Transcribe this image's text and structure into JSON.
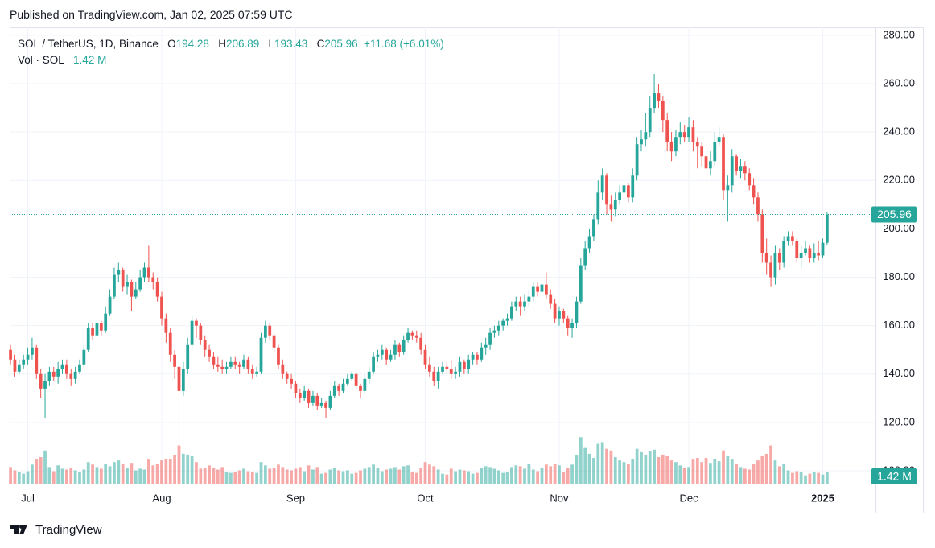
{
  "header": {
    "published": "Published on TradingView.com, Jan 02, 2025 07:59 UTC"
  },
  "footer": {
    "brand": "TradingView"
  },
  "chart_data": {
    "type": "candlestick",
    "symbol": "SOL / TetherUS, 1D, Binance",
    "ohlc_labels": [
      "O",
      "H",
      "L",
      "C"
    ],
    "change": "+11.68 (+6.01%)",
    "volume_title": "Vol · SOL",
    "volume_value_label": "1.42 M",
    "up_color": "#26a69a",
    "down_color": "#ef5350",
    "grid": true,
    "xlim": [
      -0.2,
      200.2
    ],
    "xticks": [
      {
        "value": 4,
        "label": "Jul"
      },
      {
        "value": 35,
        "label": "Aug"
      },
      {
        "value": 66,
        "label": "Sep"
      },
      {
        "value": 96,
        "label": "Oct"
      },
      {
        "value": 127,
        "label": "Nov"
      },
      {
        "value": 157,
        "label": "Dec"
      },
      {
        "value": 188,
        "label": "2025"
      }
    ],
    "ylim": [
      94.7,
      283.3
    ],
    "yticks": [
      {
        "value": 100,
        "label": "100.00"
      },
      {
        "value": 120,
        "label": "120.00"
      },
      {
        "value": 140,
        "label": "140.00"
      },
      {
        "value": 160,
        "label": "160.00"
      },
      {
        "value": 180,
        "label": "180.00"
      },
      {
        "value": 200,
        "label": "200.00"
      },
      {
        "value": 220,
        "label": "220.00"
      },
      {
        "value": 240,
        "label": "240.00"
      },
      {
        "value": 260,
        "label": "260.00"
      },
      {
        "value": 280,
        "label": "280.00"
      }
    ],
    "vol_ylim": [
      0,
      55
    ],
    "candles": [
      [
        150,
        152,
        144,
        146,
        2.0
      ],
      [
        146,
        148,
        139,
        141,
        1.6
      ],
      [
        141,
        146,
        140,
        144,
        1.4
      ],
      [
        144,
        148,
        142,
        146,
        1.2
      ],
      [
        146,
        151,
        144,
        148,
        1.5
      ],
      [
        148,
        155,
        146,
        151,
        2.3
      ],
      [
        151,
        152,
        138,
        140,
        2.9
      ],
      [
        140,
        142,
        130,
        134,
        3.2
      ],
      [
        134,
        140,
        122,
        137,
        4.0
      ],
      [
        137,
        143,
        135,
        141,
        2.0
      ],
      [
        141,
        143,
        137,
        139,
        1.5
      ],
      [
        139,
        145,
        136,
        142,
        2.2
      ],
      [
        142,
        146,
        140,
        144,
        1.8
      ],
      [
        144,
        146,
        138,
        140,
        1.7
      ],
      [
        140,
        142,
        135,
        138,
        1.9
      ],
      [
        138,
        143,
        136,
        141,
        1.6
      ],
      [
        141,
        146,
        140,
        144,
        1.4
      ],
      [
        144,
        152,
        143,
        150,
        1.7
      ],
      [
        150,
        161,
        149,
        159,
        2.6
      ],
      [
        159,
        161,
        154,
        156,
        2.3
      ],
      [
        156,
        163,
        155,
        161,
        2.0
      ],
      [
        161,
        162,
        156,
        158,
        1.8
      ],
      [
        158,
        168,
        157,
        165,
        2.4
      ],
      [
        165,
        175,
        164,
        172,
        2.1
      ],
      [
        172,
        184,
        171,
        181,
        2.6
      ],
      [
        181,
        186,
        178,
        183,
        2.8
      ],
      [
        183,
        184,
        174,
        176,
        2.4
      ],
      [
        176,
        181,
        173,
        178,
        1.9
      ],
      [
        178,
        179,
        166,
        172,
        2.5
      ],
      [
        172,
        178,
        171,
        175,
        1.6
      ],
      [
        175,
        183,
        174,
        180,
        1.8
      ],
      [
        180,
        186,
        178,
        184,
        1.7
      ],
      [
        184,
        193,
        178,
        180,
        2.9
      ],
      [
        180,
        182,
        175,
        178,
        2.2
      ],
      [
        178,
        180,
        170,
        172,
        2.4
      ],
      [
        172,
        174,
        160,
        163,
        2.8
      ],
      [
        163,
        165,
        153,
        157,
        3.0
      ],
      [
        157,
        159,
        145,
        148,
        3.0
      ],
      [
        148,
        150,
        138,
        143,
        3.4
      ],
      [
        143,
        145,
        110,
        133,
        4.6
      ],
      [
        133,
        145,
        131,
        142,
        3.6
      ],
      [
        142,
        155,
        140,
        152,
        3.5
      ],
      [
        152,
        164,
        150,
        162,
        3.3
      ],
      [
        162,
        163,
        155,
        160,
        2.6
      ],
      [
        160,
        161,
        152,
        154,
        1.8
      ],
      [
        154,
        156,
        147,
        150,
        1.9
      ],
      [
        150,
        152,
        145,
        147,
        2.2
      ],
      [
        147,
        149,
        142,
        144,
        1.9
      ],
      [
        144,
        147,
        141,
        143,
        1.7
      ],
      [
        143,
        146,
        140,
        142,
        2.0
      ],
      [
        142,
        145,
        140,
        143,
        1.4
      ],
      [
        143,
        147,
        142,
        145,
        1.3
      ],
      [
        145,
        147,
        142,
        144,
        1.4
      ],
      [
        144,
        145,
        140,
        143,
        1.6
      ],
      [
        143,
        148,
        142,
        146,
        1.8
      ],
      [
        146,
        147,
        140,
        142,
        1.5
      ],
      [
        142,
        144,
        138,
        140,
        1.4
      ],
      [
        140,
        143,
        139,
        141,
        1.3
      ],
      [
        141,
        157,
        140,
        155,
        2.6
      ],
      [
        155,
        162,
        153,
        160,
        2.2
      ],
      [
        160,
        161,
        154,
        156,
        1.8
      ],
      [
        156,
        157,
        149,
        151,
        1.9
      ],
      [
        151,
        152,
        142,
        144,
        2.3
      ],
      [
        144,
        146,
        138,
        140,
        2.0
      ],
      [
        140,
        141,
        136,
        138,
        1.7
      ],
      [
        138,
        140,
        134,
        136,
        1.6
      ],
      [
        136,
        137,
        130,
        132,
        1.8
      ],
      [
        132,
        134,
        128,
        130,
        2.0
      ],
      [
        130,
        135,
        129,
        133,
        1.5
      ],
      [
        133,
        134,
        126,
        128,
        2.2
      ],
      [
        128,
        133,
        127,
        131,
        1.7
      ],
      [
        131,
        132,
        125,
        127,
        2.0
      ],
      [
        127,
        130,
        126,
        128,
        1.2
      ],
      [
        128,
        129,
        122,
        126,
        1.3
      ],
      [
        126,
        133,
        125,
        131,
        1.7
      ],
      [
        131,
        137,
        130,
        135,
        1.9
      ],
      [
        135,
        136,
        131,
        133,
        1.6
      ],
      [
        133,
        138,
        132,
        136,
        1.5
      ],
      [
        136,
        140,
        135,
        138,
        1.6
      ],
      [
        138,
        141,
        137,
        140,
        1.2
      ],
      [
        140,
        141,
        134,
        135,
        1.3
      ],
      [
        135,
        136,
        130,
        133,
        1.6
      ],
      [
        133,
        140,
        132,
        138,
        1.8
      ],
      [
        138,
        143,
        136,
        141,
        2.0
      ],
      [
        141,
        149,
        140,
        147,
        2.3
      ],
      [
        147,
        150,
        145,
        148,
        1.9
      ],
      [
        148,
        152,
        146,
        150,
        1.5
      ],
      [
        150,
        151,
        144,
        146,
        1.7
      ],
      [
        146,
        150,
        145,
        148,
        1.8
      ],
      [
        148,
        154,
        146,
        152,
        2.0
      ],
      [
        152,
        153,
        147,
        149,
        1.7
      ],
      [
        149,
        156,
        148,
        154,
        2.1
      ],
      [
        154,
        159,
        153,
        157,
        2.2
      ],
      [
        157,
        158,
        154,
        156,
        1.4
      ],
      [
        156,
        158,
        153,
        155,
        1.3
      ],
      [
        155,
        157,
        148,
        150,
        1.9
      ],
      [
        150,
        152,
        142,
        144,
        2.6
      ],
      [
        144,
        147,
        139,
        141,
        2.3
      ],
      [
        141,
        143,
        135,
        137,
        2.1
      ],
      [
        137,
        143,
        134,
        141,
        1.7
      ],
      [
        141,
        145,
        140,
        143,
        1.2
      ],
      [
        143,
        145,
        140,
        142,
        1.1
      ],
      [
        142,
        146,
        138,
        140,
        1.8
      ],
      [
        140,
        143,
        138,
        141,
        1.5
      ],
      [
        141,
        147,
        139,
        145,
        1.7
      ],
      [
        145,
        146,
        140,
        142,
        1.6
      ],
      [
        142,
        148,
        140,
        146,
        1.5
      ],
      [
        146,
        149,
        144,
        148,
        1.2
      ],
      [
        148,
        149,
        144,
        146,
        1.3
      ],
      [
        146,
        153,
        145,
        151,
        1.9
      ],
      [
        151,
        155,
        148,
        152,
        2.1
      ],
      [
        152,
        159,
        150,
        157,
        2.0
      ],
      [
        157,
        160,
        155,
        158,
        1.8
      ],
      [
        158,
        162,
        156,
        160,
        1.6
      ],
      [
        160,
        163,
        158,
        162,
        1.3
      ],
      [
        162,
        165,
        160,
        163,
        1.4
      ],
      [
        163,
        170,
        162,
        168,
        2.0
      ],
      [
        168,
        172,
        166,
        170,
        2.2
      ],
      [
        170,
        172,
        164,
        168,
        2.1
      ],
      [
        168,
        173,
        166,
        170,
        1.8
      ],
      [
        170,
        175,
        168,
        172,
        2.4
      ],
      [
        172,
        178,
        170,
        176,
        1.7
      ],
      [
        176,
        178,
        172,
        174,
        1.5
      ],
      [
        174,
        180,
        172,
        177,
        1.9
      ],
      [
        177,
        182,
        171,
        173,
        2.3
      ],
      [
        173,
        175,
        167,
        169,
        2.1
      ],
      [
        169,
        171,
        161,
        163,
        2.4
      ],
      [
        163,
        168,
        160,
        166,
        2.2
      ],
      [
        166,
        167,
        161,
        163,
        1.4
      ],
      [
        163,
        164,
        156,
        159,
        1.9
      ],
      [
        159,
        163,
        155,
        161,
        2.3
      ],
      [
        161,
        172,
        159,
        170,
        3.4
      ],
      [
        170,
        188,
        169,
        185,
        5.6
      ],
      [
        185,
        195,
        183,
        192,
        4.3
      ],
      [
        192,
        200,
        190,
        197,
        3.6
      ],
      [
        197,
        206,
        195,
        204,
        3.1
      ],
      [
        204,
        220,
        202,
        215,
        4.8
      ],
      [
        215,
        225,
        212,
        222,
        5.0
      ],
      [
        222,
        223,
        206,
        210,
        4.2
      ],
      [
        210,
        214,
        203,
        208,
        4.0
      ],
      [
        208,
        215,
        205,
        212,
        3.2
      ],
      [
        212,
        218,
        210,
        215,
        2.8
      ],
      [
        215,
        222,
        213,
        218,
        2.6
      ],
      [
        218,
        219,
        211,
        213,
        2.4
      ],
      [
        213,
        225,
        211,
        222,
        3.0
      ],
      [
        222,
        238,
        220,
        235,
        4.2
      ],
      [
        235,
        241,
        232,
        237,
        3.8
      ],
      [
        237,
        248,
        234,
        240,
        3.4
      ],
      [
        240,
        255,
        238,
        250,
        3.9
      ],
      [
        250,
        264,
        248,
        256,
        4.1
      ],
      [
        256,
        260,
        250,
        253,
        3.2
      ],
      [
        253,
        255,
        240,
        245,
        3.5
      ],
      [
        245,
        248,
        232,
        236,
        3.3
      ],
      [
        236,
        240,
        228,
        232,
        2.8
      ],
      [
        232,
        241,
        230,
        238,
        2.6
      ],
      [
        238,
        244,
        235,
        240,
        2.2
      ],
      [
        240,
        243,
        236,
        238,
        1.9
      ],
      [
        238,
        246,
        236,
        242,
        2.0
      ],
      [
        242,
        245,
        232,
        236,
        2.9
      ],
      [
        236,
        238,
        225,
        234,
        3.1
      ],
      [
        234,
        236,
        226,
        230,
        2.6
      ],
      [
        230,
        235,
        218,
        225,
        3.1
      ],
      [
        225,
        232,
        222,
        228,
        2.5
      ],
      [
        228,
        240,
        226,
        236,
        3.0
      ],
      [
        236,
        242,
        234,
        238,
        2.7
      ],
      [
        238,
        239,
        212,
        216,
        4.0
      ],
      [
        216,
        222,
        203,
        218,
        3.3
      ],
      [
        218,
        233,
        215,
        230,
        2.9
      ],
      [
        230,
        231,
        222,
        224,
        2.4
      ],
      [
        224,
        229,
        221,
        226,
        2.0
      ],
      [
        226,
        228,
        220,
        223,
        1.8
      ],
      [
        223,
        225,
        216,
        218,
        1.7
      ],
      [
        218,
        221,
        210,
        213,
        2.4
      ],
      [
        213,
        215,
        203,
        206,
        2.8
      ],
      [
        206,
        208,
        186,
        190,
        3.3
      ],
      [
        190,
        196,
        181,
        186,
        3.6
      ],
      [
        186,
        189,
        176,
        180,
        4.6
      ],
      [
        180,
        193,
        177,
        190,
        2.8
      ],
      [
        190,
        192,
        183,
        186,
        2.1
      ],
      [
        186,
        197,
        184,
        195,
        2.4
      ],
      [
        195,
        199,
        193,
        197,
        1.6
      ],
      [
        197,
        199,
        193,
        195,
        1.3
      ],
      [
        195,
        196,
        186,
        188,
        1.5
      ],
      [
        188,
        193,
        184,
        190,
        1.4
      ],
      [
        190,
        195,
        189,
        192,
        1.0
      ],
      [
        192,
        193,
        186,
        188,
        1.2
      ],
      [
        188,
        194,
        186,
        190,
        1.4
      ],
      [
        190,
        195,
        187,
        189,
        1.3
      ],
      [
        189,
        196,
        188,
        194.28,
        1.1
      ],
      [
        194.28,
        206.89,
        193.43,
        205.96,
        1.42
      ]
    ]
  }
}
